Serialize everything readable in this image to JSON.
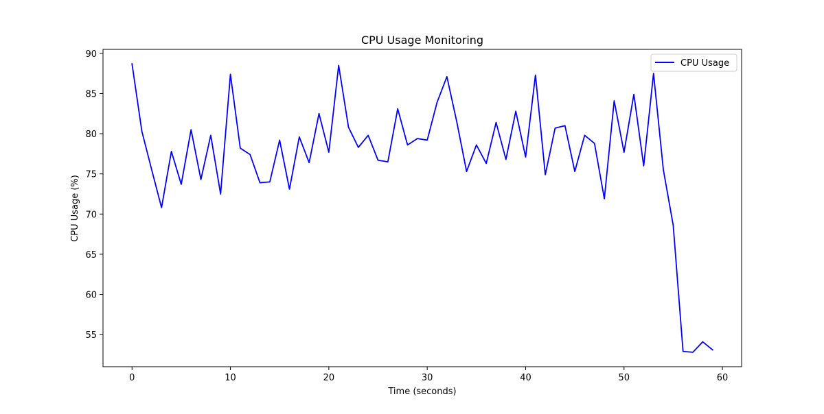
{
  "chart_data": {
    "type": "line",
    "title": "CPU Usage Monitoring",
    "xlabel": "Time (seconds)",
    "ylabel": "CPU Usage (%)",
    "xlim": [
      -2.95,
      61.95
    ],
    "ylim": [
      51.0,
      90.5
    ],
    "xticks": [
      0,
      10,
      20,
      30,
      40,
      50,
      60
    ],
    "yticks": [
      55,
      60,
      65,
      70,
      75,
      80,
      85,
      90
    ],
    "grid": false,
    "legend_position": "top-right",
    "series": [
      {
        "name": "CPU Usage",
        "color": "#0000ff",
        "x": [
          0,
          1,
          2,
          3,
          4,
          5,
          6,
          7,
          8,
          9,
          10,
          11,
          12,
          13,
          14,
          15,
          16,
          17,
          18,
          19,
          20,
          21,
          22,
          23,
          24,
          25,
          26,
          27,
          28,
          29,
          30,
          31,
          32,
          33,
          34,
          35,
          36,
          37,
          38,
          39,
          40,
          41,
          42,
          43,
          44,
          45,
          46,
          47,
          48,
          49,
          50,
          51,
          52,
          53,
          54,
          55,
          56,
          57,
          58,
          59
        ],
        "y": [
          88.7,
          80.3,
          75.5,
          70.8,
          77.8,
          73.7,
          80.5,
          74.3,
          79.8,
          72.5,
          87.4,
          78.2,
          77.4,
          73.9,
          74.0,
          79.2,
          73.1,
          79.6,
          76.4,
          82.5,
          77.7,
          88.5,
          80.8,
          78.3,
          79.8,
          76.7,
          76.5,
          83.1,
          78.6,
          79.4,
          79.2,
          83.9,
          87.1,
          81.5,
          75.3,
          78.6,
          76.3,
          81.4,
          76.8,
          82.8,
          77.1,
          87.3,
          74.9,
          80.7,
          81.0,
          75.3,
          79.8,
          78.8,
          71.9,
          84.1,
          77.7,
          84.9,
          76.0,
          87.5,
          75.5,
          68.6,
          52.9,
          52.8,
          54.1,
          53.1
        ]
      }
    ]
  }
}
